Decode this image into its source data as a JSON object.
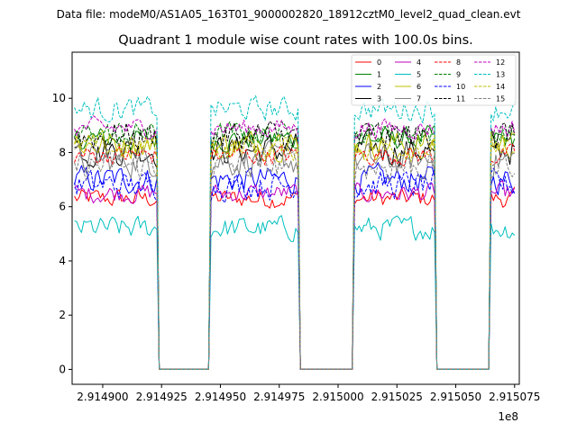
{
  "figure": {
    "suptitle": "Data file: modeM0/AS1A05_163T01_9000002820_18912cztM0_level2_quad_clean.evt"
  },
  "chart_data": {
    "type": "line",
    "title": "Quadrant 1 module wise count rates with 100.0s bins.",
    "xlabel": "",
    "ylabel": "",
    "x_offset_label": "1e8",
    "xlim": [
      291488700,
      291507700
    ],
    "ylim": [
      -0.55,
      11.7
    ],
    "x_ticks": [
      291490000,
      291492500,
      291495000,
      291497500,
      291500000,
      291502500,
      291505000,
      291507500
    ],
    "x_tick_labels": [
      "2.914900",
      "2.914925",
      "2.914950",
      "2.914975",
      "2.915000",
      "2.915025",
      "2.915050",
      "2.915075"
    ],
    "y_ticks": [
      0,
      2,
      4,
      6,
      8,
      10
    ],
    "y_tick_labels": [
      "0",
      "2",
      "4",
      "6",
      "8",
      "10"
    ],
    "bin_seconds": 100,
    "active_segments": [
      {
        "start": 291488800,
        "end": 291492300
      },
      {
        "start": 291494600,
        "end": 291498300
      },
      {
        "start": 291500700,
        "end": 291504100
      },
      {
        "start": 291506500,
        "end": 291507500
      }
    ],
    "zero_segments": [
      {
        "start": 291492400,
        "end": 291494500
      },
      {
        "start": 291498400,
        "end": 291500600
      },
      {
        "start": 291504200,
        "end": 291506400
      }
    ],
    "legend_position": "top-right",
    "series": [
      {
        "name": "0",
        "color": "#ff0000",
        "style": "solid",
        "mean_rate": 6.3
      },
      {
        "name": "1",
        "color": "#008000",
        "style": "solid",
        "mean_rate": 8.5
      },
      {
        "name": "2",
        "color": "#0000ff",
        "style": "solid",
        "mean_rate": 7.0
      },
      {
        "name": "3",
        "color": "#000000",
        "style": "solid",
        "mean_rate": 8.1
      },
      {
        "name": "4",
        "color": "#bf00bf",
        "style": "solid",
        "mean_rate": 6.5
      },
      {
        "name": "5",
        "color": "#00bfbf",
        "style": "solid",
        "mean_rate": 5.2
      },
      {
        "name": "6",
        "color": "#bfbf00",
        "style": "solid",
        "mean_rate": 8.3
      },
      {
        "name": "7",
        "color": "#808080",
        "style": "solid",
        "mean_rate": 7.7
      },
      {
        "name": "8",
        "color": "#ff0000",
        "style": "dashed",
        "mean_rate": 7.9
      },
      {
        "name": "9",
        "color": "#008000",
        "style": "dashed",
        "mean_rate": 8.7
      },
      {
        "name": "10",
        "color": "#0000ff",
        "style": "dashed",
        "mean_rate": 6.8
      },
      {
        "name": "11",
        "color": "#000000",
        "style": "dashed",
        "mean_rate": 8.6
      },
      {
        "name": "12",
        "color": "#bf00bf",
        "style": "dashed",
        "mean_rate": 8.9
      },
      {
        "name": "13",
        "color": "#00bfbf",
        "style": "dashed",
        "mean_rate": 9.6
      },
      {
        "name": "14",
        "color": "#bfbf00",
        "style": "dashed",
        "mean_rate": 8.2
      },
      {
        "name": "15",
        "color": "#808080",
        "style": "dashed",
        "mean_rate": 7.5
      }
    ]
  }
}
